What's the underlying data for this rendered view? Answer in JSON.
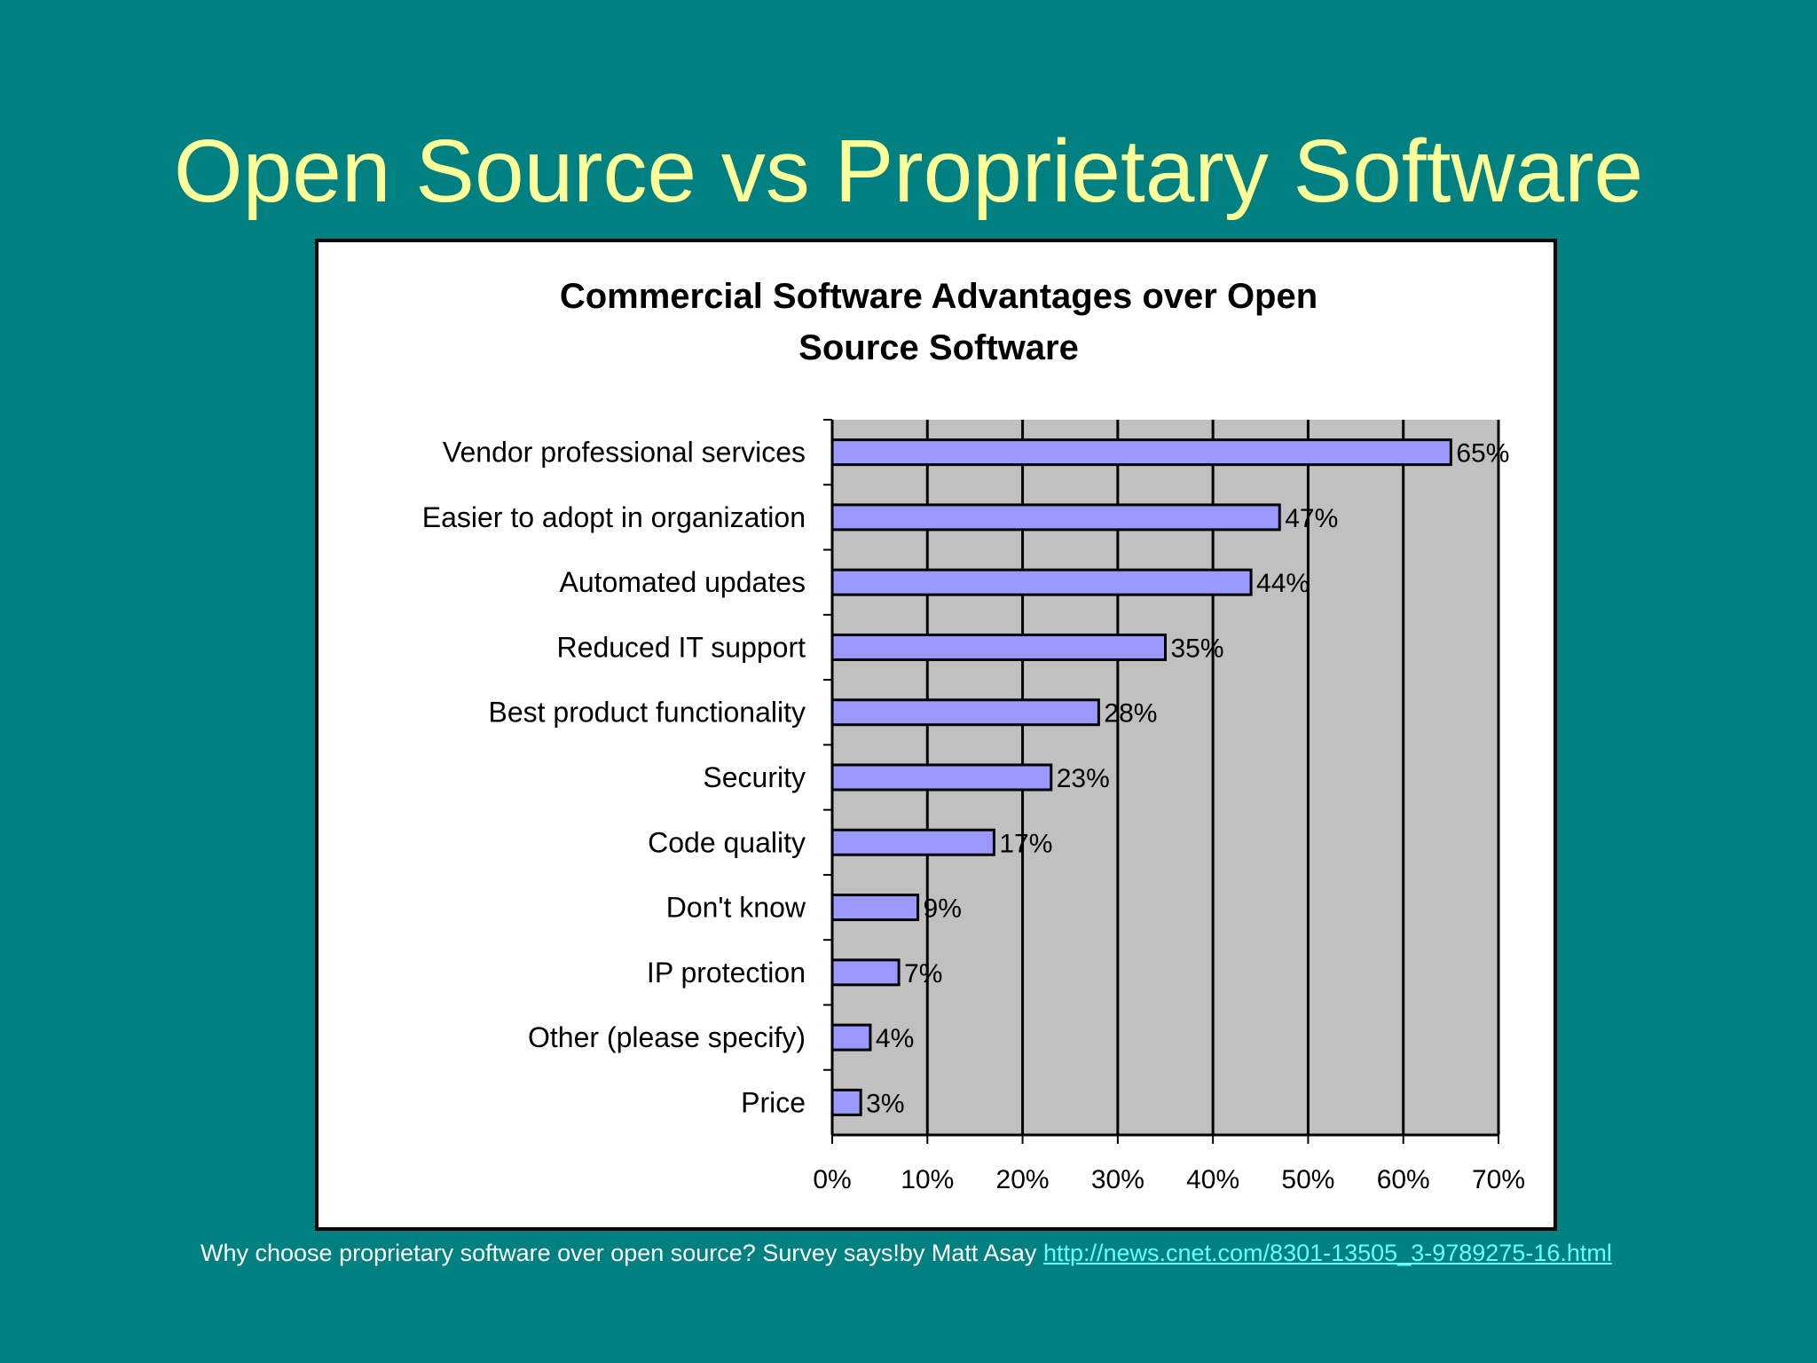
{
  "slide": {
    "title": "Open Source vs Proprietary Software",
    "caption_text": "Why choose proprietary software over open source? Survey says!by Matt Asay ",
    "caption_link": "http://news.cnet.com/8301-13505_3-9789275-16.html"
  },
  "colors": {
    "background": "#008080",
    "title": "#ffff99",
    "plot_area": "#c0c0c0",
    "bar_fill": "#9999ff",
    "link": "#66ffff"
  },
  "chart_data": {
    "type": "bar",
    "orientation": "horizontal",
    "title_lines": [
      "Commercial Software Advantages over Open",
      "Source Software"
    ],
    "categories": [
      "Vendor professional services",
      "Easier to adopt in organization",
      "Automated updates",
      "Reduced IT support",
      "Best product functionality",
      "Security",
      "Code quality",
      "Don't know",
      "IP protection",
      "Other (please specify)",
      "Price"
    ],
    "values": [
      65,
      47,
      44,
      35,
      28,
      23,
      17,
      9,
      7,
      4,
      3
    ],
    "data_labels": [
      "65%",
      "47%",
      "44%",
      "35%",
      "28%",
      "23%",
      "17%",
      "9%",
      "7%",
      "4%",
      "3%"
    ],
    "x_ticks": [
      "0%",
      "10%",
      "20%",
      "30%",
      "40%",
      "50%",
      "60%",
      "70%"
    ],
    "xlim": [
      0,
      70
    ],
    "grid": true,
    "legend": false
  }
}
